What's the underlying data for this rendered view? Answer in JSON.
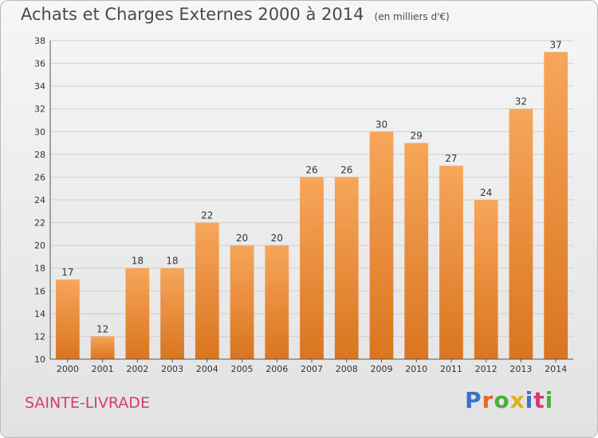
{
  "chart_data": {
    "type": "bar",
    "title": "Achats et Charges Externes 2000 à 2014",
    "subtitle": "(en milliers d'€)",
    "categories": [
      "2000",
      "2001",
      "2002",
      "2003",
      "2004",
      "2005",
      "2006",
      "2007",
      "2008",
      "2009",
      "2010",
      "2011",
      "2012",
      "2013",
      "2014"
    ],
    "values": [
      17,
      12,
      18,
      18,
      22,
      20,
      20,
      26,
      26,
      30,
      29,
      27,
      24,
      32,
      37
    ],
    "ylim": [
      10,
      38
    ],
    "yticks": [
      10,
      12,
      14,
      16,
      18,
      20,
      22,
      24,
      26,
      28,
      30,
      32,
      34,
      36,
      38
    ],
    "grid": true,
    "bar_color": "#f0923a"
  },
  "place_name": "SAINTE-LIVRADE",
  "logo": {
    "letters": [
      "P",
      "r",
      "o",
      "x",
      "i",
      "t",
      "i"
    ],
    "colors": [
      "#3b6fc9",
      "#e06a2a",
      "#4cae3c",
      "#e0b020",
      "#3b6fc9",
      "#d63a7a",
      "#4cae3c"
    ]
  }
}
